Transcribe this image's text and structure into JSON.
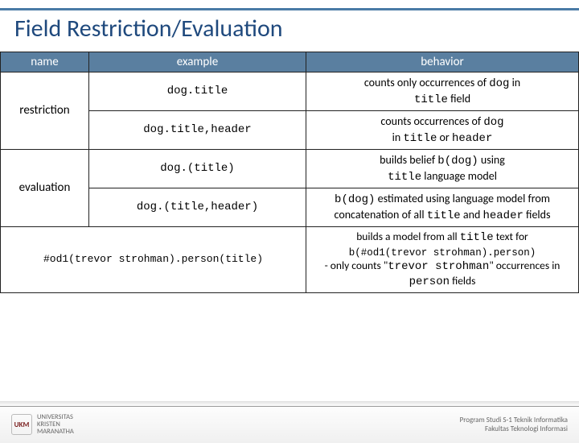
{
  "slide": {
    "title": "Field Restriction/Evaluation",
    "title_color": "#1f497d",
    "accent_line_color": "#4a7ba6",
    "table": {
      "header_bg": "#5a7fa0",
      "header_text_color": "#ffffff",
      "border_color": "#222222",
      "columns": [
        "name",
        "example",
        "behavior"
      ],
      "groups": [
        {
          "name": "restriction",
          "rows": [
            {
              "example": "dog.title",
              "behavior_pre": "counts only occurrences of ",
              "behavior_code1": "dog",
              "behavior_mid": " in ",
              "behavior_code2": "title",
              "behavior_post": " field"
            },
            {
              "example": "dog.title,header",
              "behavior_pre": "counts occurrences of ",
              "behavior_code1": "dog",
              "behavior_mid": " in ",
              "behavior_code2": "title",
              "behavior_mid2": " or ",
              "behavior_code3": "header"
            }
          ]
        },
        {
          "name": "evaluation",
          "rows": [
            {
              "example": "dog.(title)",
              "behavior_pre": "builds belief ",
              "behavior_code1": "b(dog)",
              "behavior_mid": " using ",
              "behavior_code2": "title",
              "behavior_post": " language model"
            },
            {
              "example": "dog.(title,header)",
              "behavior_code1": "b(dog)",
              "behavior_mid": " estimated using language model from concatenation of all ",
              "behavior_code2": "title",
              "behavior_mid2": " and ",
              "behavior_code3": "header",
              "behavior_post": " fields"
            }
          ]
        },
        {
          "name": "",
          "full_example": "#od1(trevor strohman).person(title)",
          "behavior_line1_pre": "builds a model from all ",
          "behavior_line1_code": "title",
          "behavior_line1_post": " text for",
          "behavior_line2_code": "b(#od1(trevor strohman).person)",
          "behavior_line3_pre": "- only counts \"",
          "behavior_line3_code": "trevor strohman",
          "behavior_line3_mid": "\" occurrences in ",
          "behavior_line3_code2": "person",
          "behavior_line3_post": " fields"
        }
      ]
    }
  },
  "footer": {
    "left_line1": "UNIVERSITAS",
    "left_line2": "KRISTEN",
    "left_line3": "MARANATHA",
    "logo_text": "UKM",
    "right_line1": "Program Studi S-1 Teknik Informatika",
    "right_line2": "Fakultas Teknologi Informasi"
  }
}
